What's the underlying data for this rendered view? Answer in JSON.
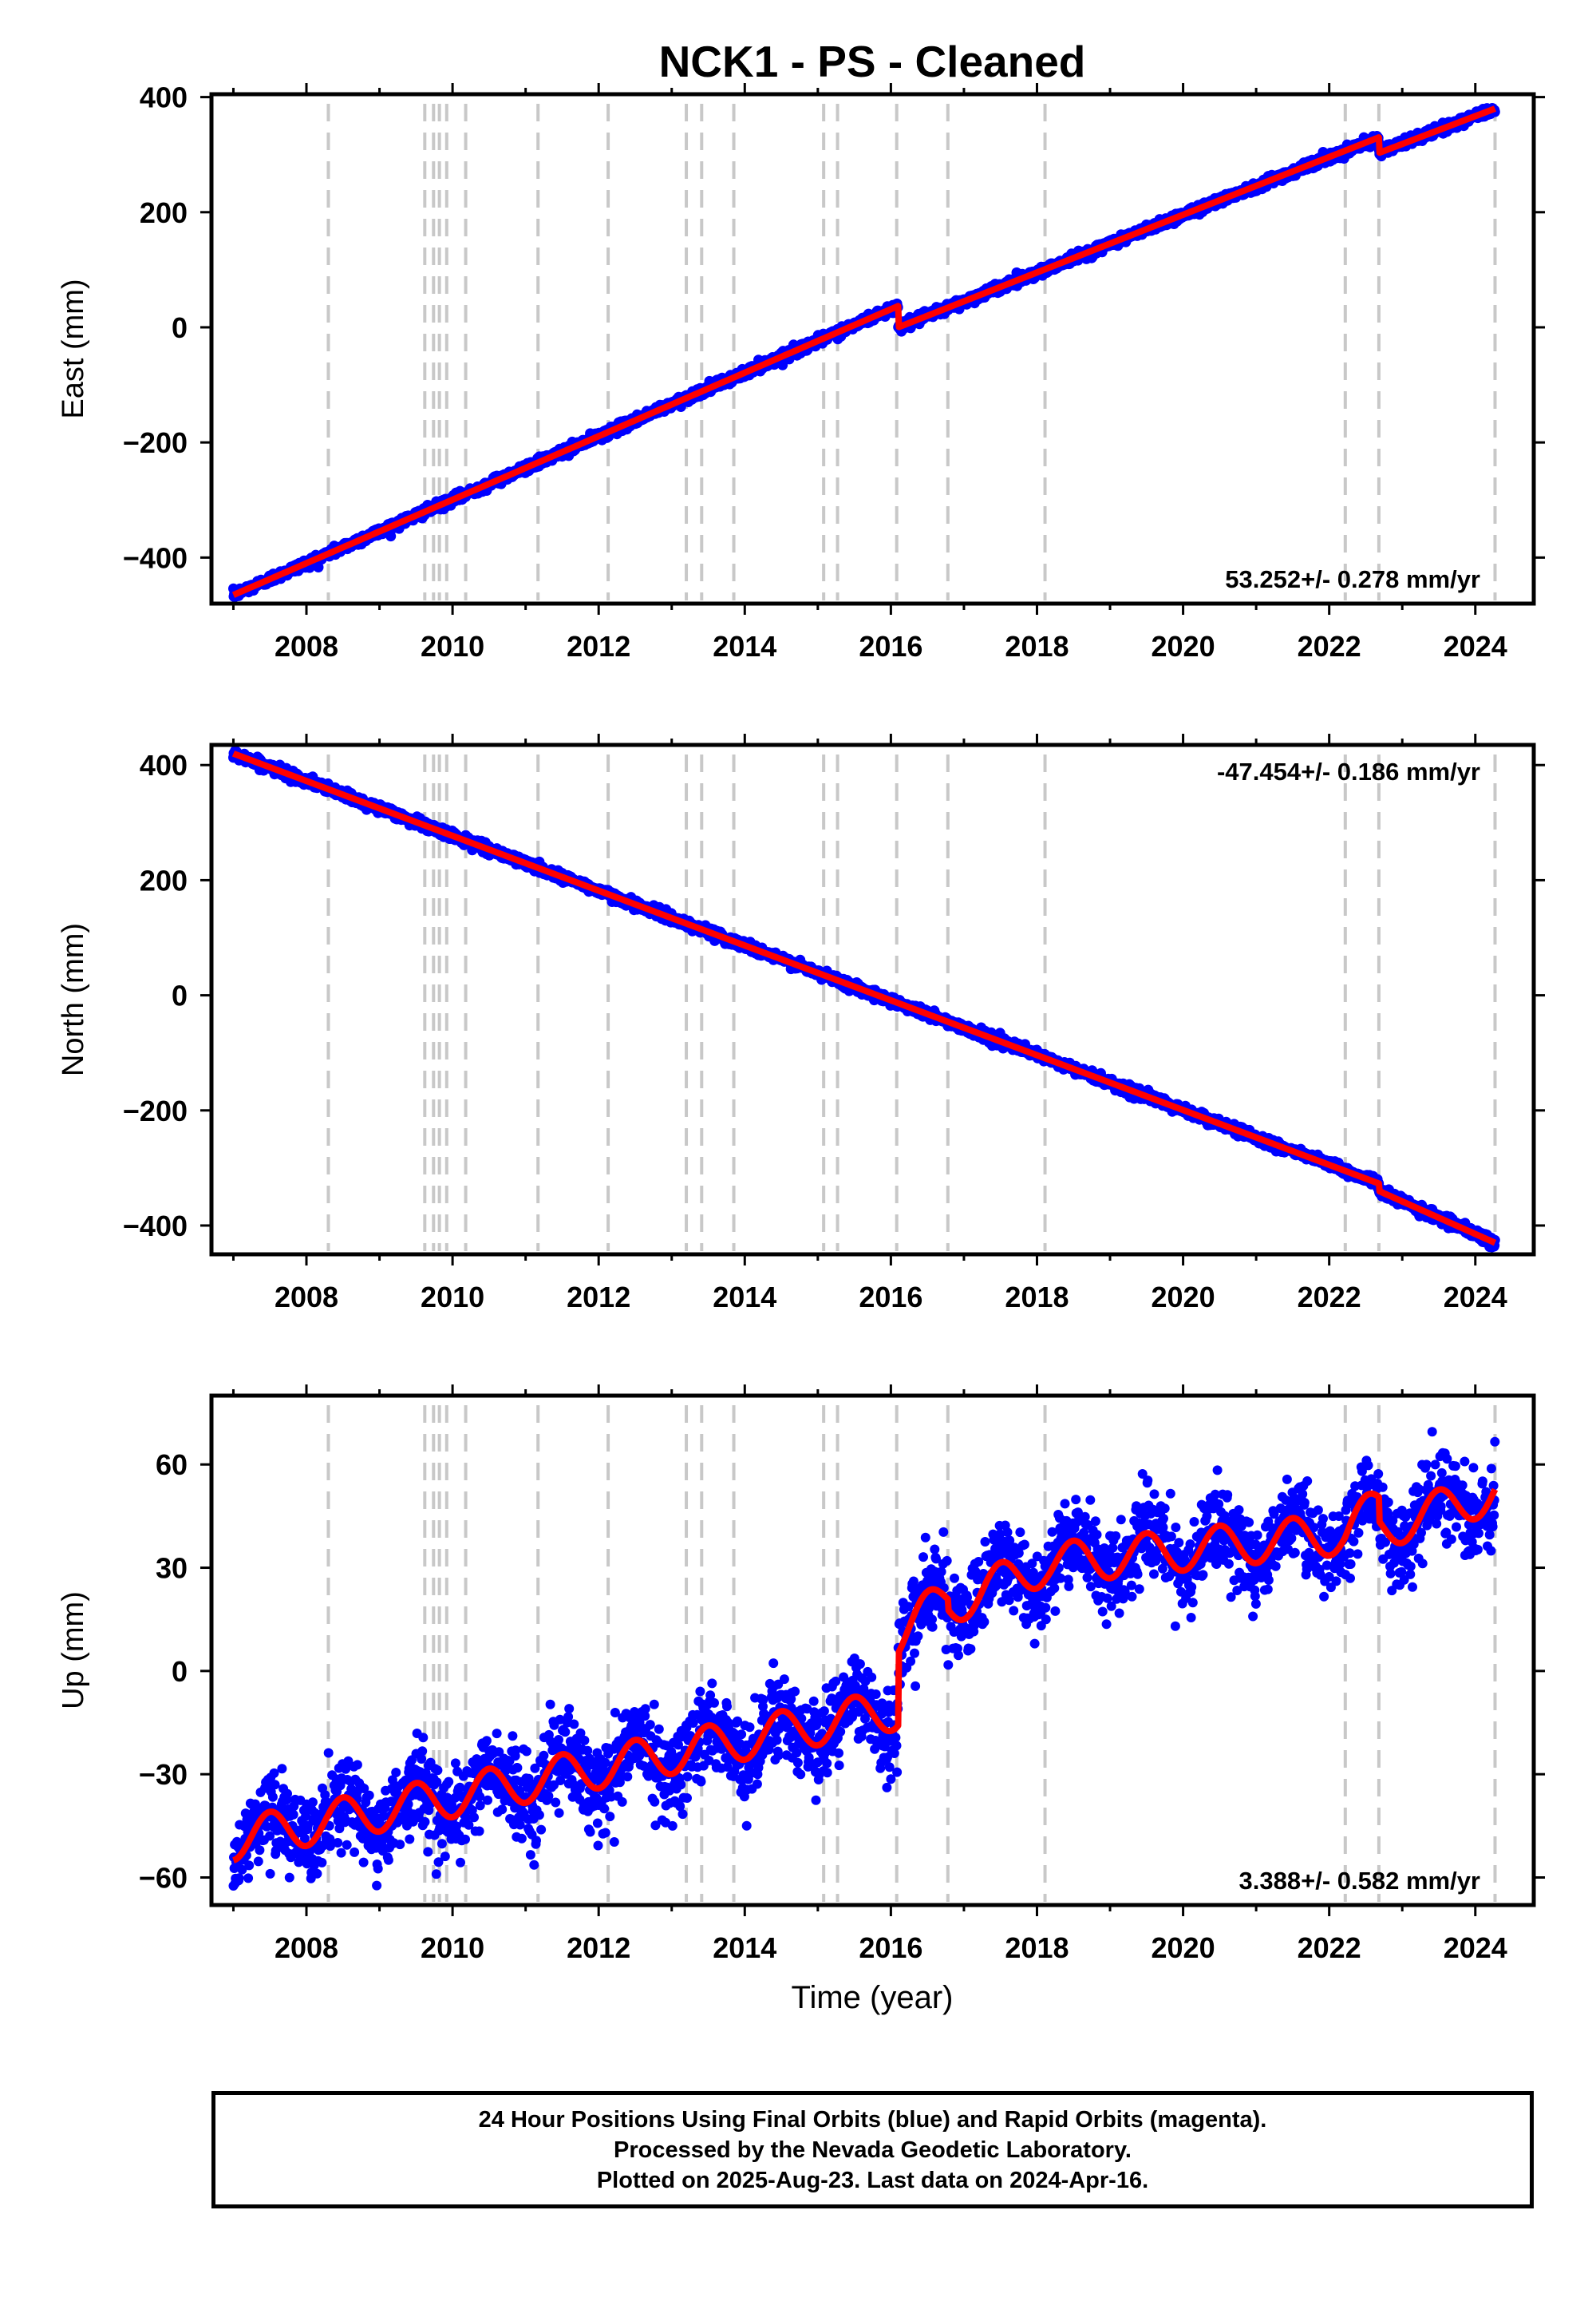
{
  "title": "NCK1  - PS - Cleaned",
  "x_axis": {
    "label": "Time (year)",
    "range": [
      2006.7,
      2024.8
    ],
    "ticks": [
      2008,
      2010,
      2012,
      2014,
      2016,
      2018,
      2020,
      2022,
      2024
    ],
    "tick_labels": [
      "2008",
      "2010",
      "2012",
      "2014",
      "2016",
      "2018",
      "2020",
      "2022",
      "2024"
    ]
  },
  "event_lines": [
    2008.3,
    2009.62,
    2009.74,
    2009.82,
    2009.92,
    2010.18,
    2011.17,
    2012.13,
    2013.2,
    2013.41,
    2013.85,
    2015.08,
    2015.27,
    2016.08,
    2016.78,
    2018.11,
    2022.22,
    2022.68,
    2024.27
  ],
  "colors": {
    "data_points": "#0000ff",
    "model_line": "#ff0000",
    "event_lines": "#c8c8c8",
    "axes": "#000000"
  },
  "footer": {
    "line1": "24 Hour Positions Using Final Orbits (blue) and Rapid Orbits (magenta).",
    "line2": "Processed by the Nevada Geodetic Laboratory.",
    "line3": "Plotted on 2025-Aug-23. Last data on 2024-Apr-16."
  },
  "chart_data": [
    {
      "type": "scatter",
      "name": "East",
      "ylabel": "East (mm)",
      "ylim": [
        -480,
        405
      ],
      "yticks": [
        -400,
        -200,
        0,
        200,
        400
      ],
      "ytick_labels": [
        "−400",
        "−200",
        "0",
        "200",
        "400"
      ],
      "rate_label": "53.252+/- 0.278 mm/yr",
      "rate_position": "bottom-right",
      "rate": 53.252,
      "noise": 4,
      "model_knots": [
        [
          2007.0,
          -465
        ],
        [
          2016.1,
          37
        ],
        [
          2016.1,
          0
        ],
        [
          2022.68,
          330
        ],
        [
          2022.68,
          303
        ],
        [
          2024.27,
          380
        ]
      ]
    },
    {
      "type": "scatter",
      "name": "North",
      "ylabel": "North (mm)",
      "ylim": [
        -450,
        435
      ],
      "yticks": [
        -400,
        -200,
        0,
        200,
        400
      ],
      "ytick_labels": [
        "−400",
        "−200",
        "0",
        "200",
        "400"
      ],
      "rate_label": "-47.454+/- 0.186 mm/yr",
      "rate_position": "top-right",
      "rate": -47.454,
      "noise": 4,
      "model_knots": [
        [
          2007.0,
          420
        ],
        [
          2022.68,
          -327
        ],
        [
          2022.68,
          -340
        ],
        [
          2024.27,
          -430
        ]
      ]
    },
    {
      "type": "scatter",
      "name": "Up",
      "ylabel": "Up (mm)",
      "ylim": [
        -68,
        80
      ],
      "yticks": [
        -60,
        -30,
        0,
        30,
        60
      ],
      "ytick_labels": [
        "−60",
        "−30",
        "0",
        "30",
        "60"
      ],
      "rate_label": "3.388+/- 0.582 mm/yr",
      "rate_position": "bottom-right",
      "rate": 3.388,
      "noise": 6,
      "seasonal_amplitude": 6,
      "model_knots": [
        [
          2007.0,
          -49
        ],
        [
          2016.1,
          -11
        ],
        [
          2016.1,
          10
        ],
        [
          2016.78,
          22
        ],
        [
          2016.78,
          19
        ],
        [
          2018.11,
          31
        ],
        [
          2022.22,
          40
        ],
        [
          2022.68,
          48
        ],
        [
          2022.68,
          41
        ],
        [
          2024.27,
          52
        ]
      ]
    }
  ]
}
